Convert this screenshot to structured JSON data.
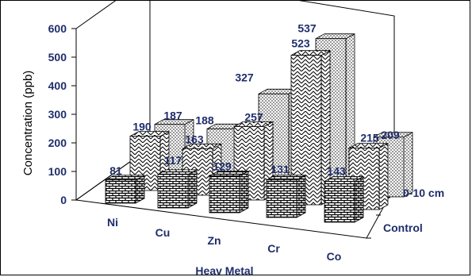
{
  "chart_data": {
    "type": "bar",
    "categories": [
      "Ni",
      "Cu",
      "Zn",
      "Cr",
      "Co"
    ],
    "series": [
      {
        "name": "Control",
        "values": [
          81,
          117,
          129,
          131,
          143
        ]
      },
      {
        "name": "",
        "values": [
          190,
          163,
          257,
          523,
          215
        ]
      },
      {
        "name": "0-10 cm",
        "values": [
          187,
          188,
          327,
          537,
          209
        ]
      }
    ],
    "xlabel": "Heav Metal",
    "ylabel": "Concentration (ppb)",
    "ylim": [
      0,
      600
    ],
    "yticks": [
      0,
      100,
      200,
      300,
      400,
      500,
      600
    ],
    "depth_labels": [
      "0-10 cm",
      "Control"
    ],
    "grid": false,
    "colors": {
      "text": "#1f2d6b",
      "stroke": "#000000"
    }
  }
}
